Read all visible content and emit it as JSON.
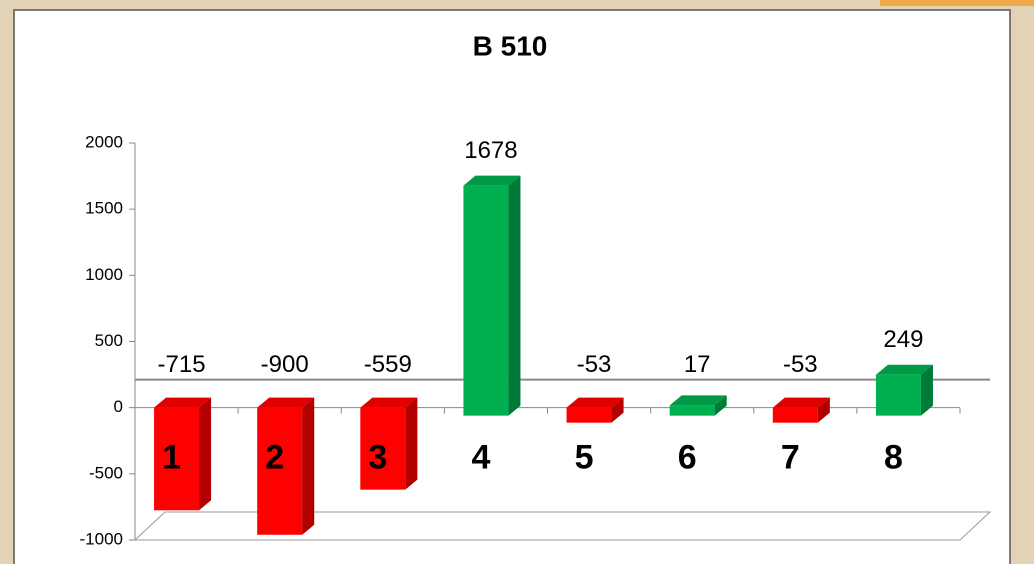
{
  "chart_data": {
    "type": "bar3d",
    "title": "B 510",
    "categories": [
      "1",
      "2",
      "3",
      "4",
      "5",
      "6",
      "7",
      "8"
    ],
    "values": [
      -715,
      -900,
      -559,
      1678,
      -53,
      17,
      -53,
      249
    ],
    "colors": [
      "#ff0000",
      "#ff0000",
      "#ff0000",
      "#00b050",
      "#ff0000",
      "#00b050",
      "#ff0000",
      "#00b050"
    ],
    "ylim": [
      -1000,
      2000
    ],
    "yticks": [
      -1000,
      -500,
      0,
      500,
      1000,
      1500,
      2000
    ]
  }
}
